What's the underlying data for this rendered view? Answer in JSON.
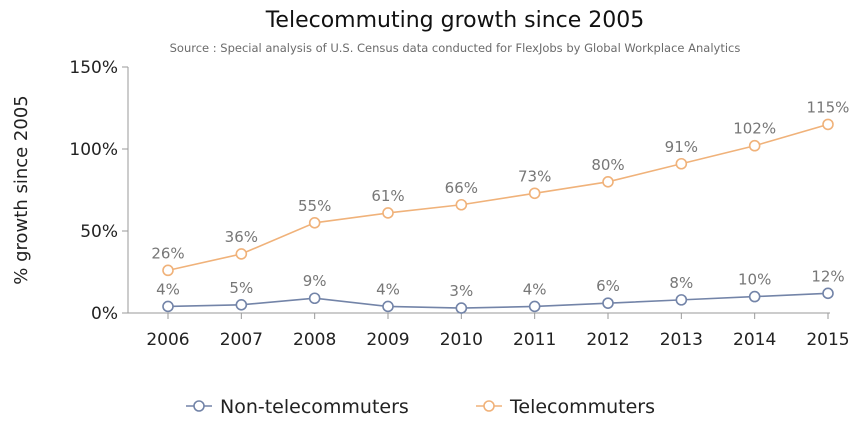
{
  "chart_data": {
    "type": "line",
    "title": "Telecommuting growth since 2005",
    "subtitle": "Source : Special analysis of U.S. Census data conducted for FlexJobs by Global Workplace Analytics",
    "xlabel": "",
    "ylabel": "% growth since 2005",
    "x": [
      "2006",
      "2007",
      "2008",
      "2009",
      "2010",
      "2011",
      "2012",
      "2013",
      "2014",
      "2015"
    ],
    "ylim": [
      0,
      150
    ],
    "yticks": [
      0,
      50,
      100,
      150
    ],
    "ytick_labels": [
      "0%",
      "50%",
      "100%",
      "150%"
    ],
    "grid": false,
    "legend_position": "bottom-center",
    "series": [
      {
        "name": "Non-telecommuters",
        "color": "#7384a8",
        "values": [
          4,
          5,
          9,
          4,
          3,
          4,
          6,
          8,
          10,
          12
        ],
        "labels": [
          "4%",
          "5%",
          "9%",
          "4%",
          "3%",
          "4%",
          "6%",
          "8%",
          "10%",
          "12%"
        ]
      },
      {
        "name": "Telecommuters",
        "color": "#f0b27a",
        "values": [
          26,
          36,
          55,
          61,
          66,
          73,
          80,
          91,
          102,
          115
        ],
        "labels": [
          "26%",
          "36%",
          "55%",
          "61%",
          "66%",
          "73%",
          "80%",
          "91%",
          "102%",
          "115%"
        ]
      }
    ]
  }
}
